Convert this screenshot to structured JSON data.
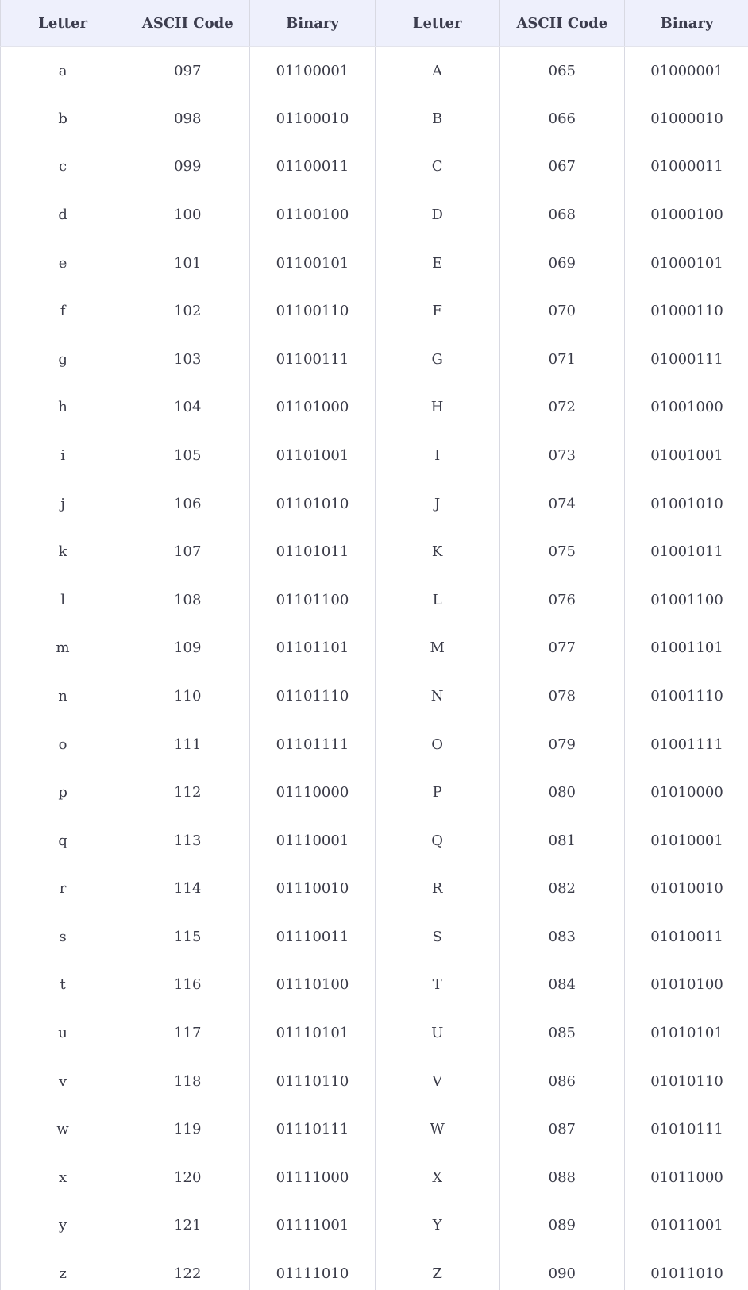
{
  "table": {
    "headers": [
      "Letter",
      "ASCII Code",
      "Binary",
      "Letter",
      "ASCII Code",
      "Binary"
    ],
    "rows": [
      [
        "a",
        "097",
        "01100001",
        "A",
        "065",
        "01000001"
      ],
      [
        "b",
        "098",
        "01100010",
        "B",
        "066",
        "01000010"
      ],
      [
        "c",
        "099",
        "01100011",
        "C",
        "067",
        "01000011"
      ],
      [
        "d",
        "100",
        "01100100",
        "D",
        "068",
        "01000100"
      ],
      [
        "e",
        "101",
        "01100101",
        "E",
        "069",
        "01000101"
      ],
      [
        "f",
        "102",
        "01100110",
        "F",
        "070",
        "01000110"
      ],
      [
        "g",
        "103",
        "01100111",
        "G",
        "071",
        "01000111"
      ],
      [
        "h",
        "104",
        "01101000",
        "H",
        "072",
        "01001000"
      ],
      [
        "i",
        "105",
        "01101001",
        "I",
        "073",
        "01001001"
      ],
      [
        "j",
        "106",
        "01101010",
        "J",
        "074",
        "01001010"
      ],
      [
        "k",
        "107",
        "01101011",
        "K",
        "075",
        "01001011"
      ],
      [
        "l",
        "108",
        "01101100",
        "L",
        "076",
        "01001100"
      ],
      [
        "m",
        "109",
        "01101101",
        "M",
        "077",
        "01001101"
      ],
      [
        "n",
        "110",
        "01101110",
        "N",
        "078",
        "01001110"
      ],
      [
        "o",
        "111",
        "01101111",
        "O",
        "079",
        "01001111"
      ],
      [
        "p",
        "112",
        "01110000",
        "P",
        "080",
        "01010000"
      ],
      [
        "q",
        "113",
        "01110001",
        "Q",
        "081",
        "01010001"
      ],
      [
        "r",
        "114",
        "01110010",
        "R",
        "082",
        "01010010"
      ],
      [
        "s",
        "115",
        "01110011",
        "S",
        "083",
        "01010011"
      ],
      [
        "t",
        "116",
        "01110100",
        "T",
        "084",
        "01010100"
      ],
      [
        "u",
        "117",
        "01110101",
        "U",
        "085",
        "01010101"
      ],
      [
        "v",
        "118",
        "01110110",
        "V",
        "086",
        "01010110"
      ],
      [
        "w",
        "119",
        "01110111",
        "W",
        "087",
        "01010111"
      ],
      [
        "x",
        "120",
        "01111000",
        "X",
        "088",
        "01011000"
      ],
      [
        "y",
        "121",
        "01111001",
        "Y",
        "089",
        "01011001"
      ],
      [
        "z",
        "122",
        "01111010",
        "Z",
        "090",
        "01011010"
      ]
    ]
  }
}
